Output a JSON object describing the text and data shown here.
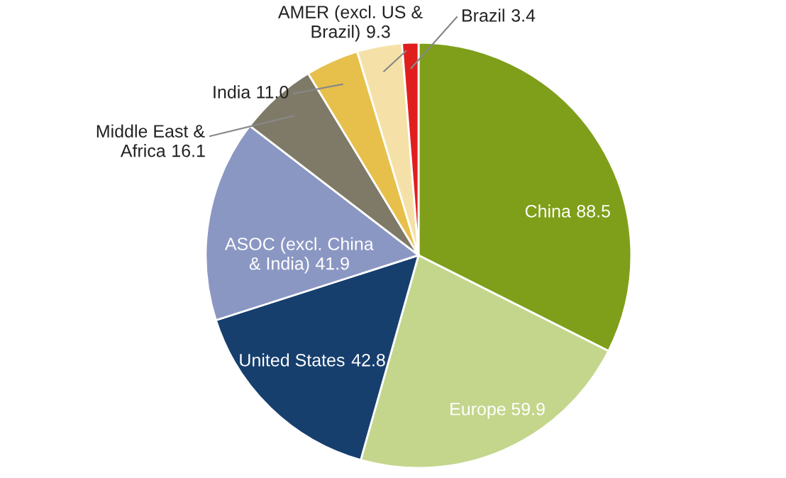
{
  "chart_data": {
    "type": "pie",
    "categories": [
      "China",
      "Europe",
      "United States",
      "ASOC (excl. China\n& India)",
      "Middle East &\nAfrica",
      "India",
      "AMER (excl. US &\nBrazil)",
      "Brazil"
    ],
    "values": [
      88.5,
      59.9,
      42.8,
      41.9,
      16.1,
      11.0,
      9.3,
      3.4
    ],
    "colors": [
      "#7f9f1a",
      "#c4d68c",
      "#173f6e",
      "#8b97c3",
      "#7f7a68",
      "#e7c04c",
      "#f5e1a8",
      "#e01e1e"
    ],
    "value_labels": [
      "88.5",
      "59.9",
      "42.8",
      "41.9",
      "16.1",
      "11.0",
      "9.3",
      "3.4"
    ],
    "legend": false
  }
}
